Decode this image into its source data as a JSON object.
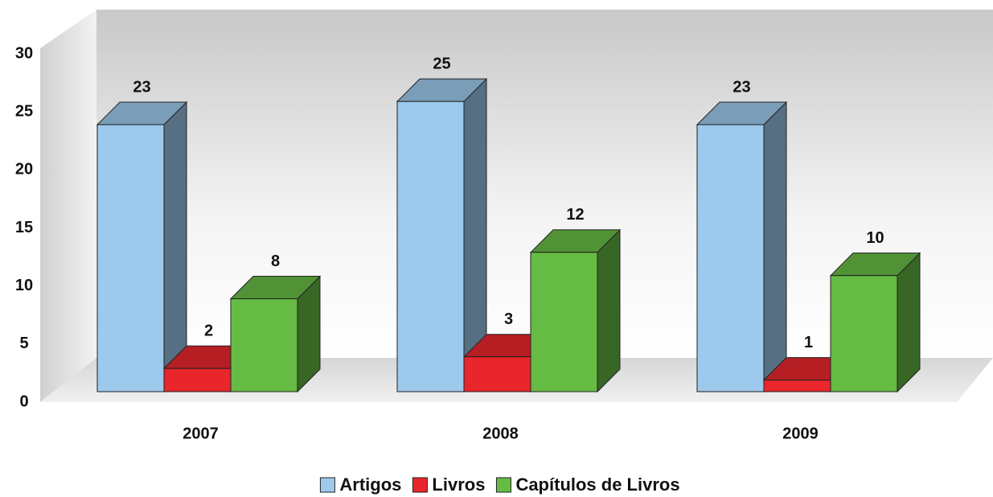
{
  "chart_data": {
    "type": "bar3d",
    "categories": [
      "2007",
      "2008",
      "2009"
    ],
    "series": [
      {
        "name": "Artigos",
        "color": "#9dc9ec",
        "values": [
          23,
          25,
          23
        ]
      },
      {
        "name": "Livros",
        "color": "#e8262b",
        "values": [
          2,
          3,
          1
        ]
      },
      {
        "name": "Capítulos de Livros",
        "color": "#66bb44",
        "values": [
          8,
          12,
          10
        ]
      }
    ],
    "ylim": [
      0,
      30
    ],
    "yticks": [
      0,
      5,
      10,
      15,
      20,
      25,
      30
    ],
    "grid": false,
    "legend": "bottom"
  }
}
